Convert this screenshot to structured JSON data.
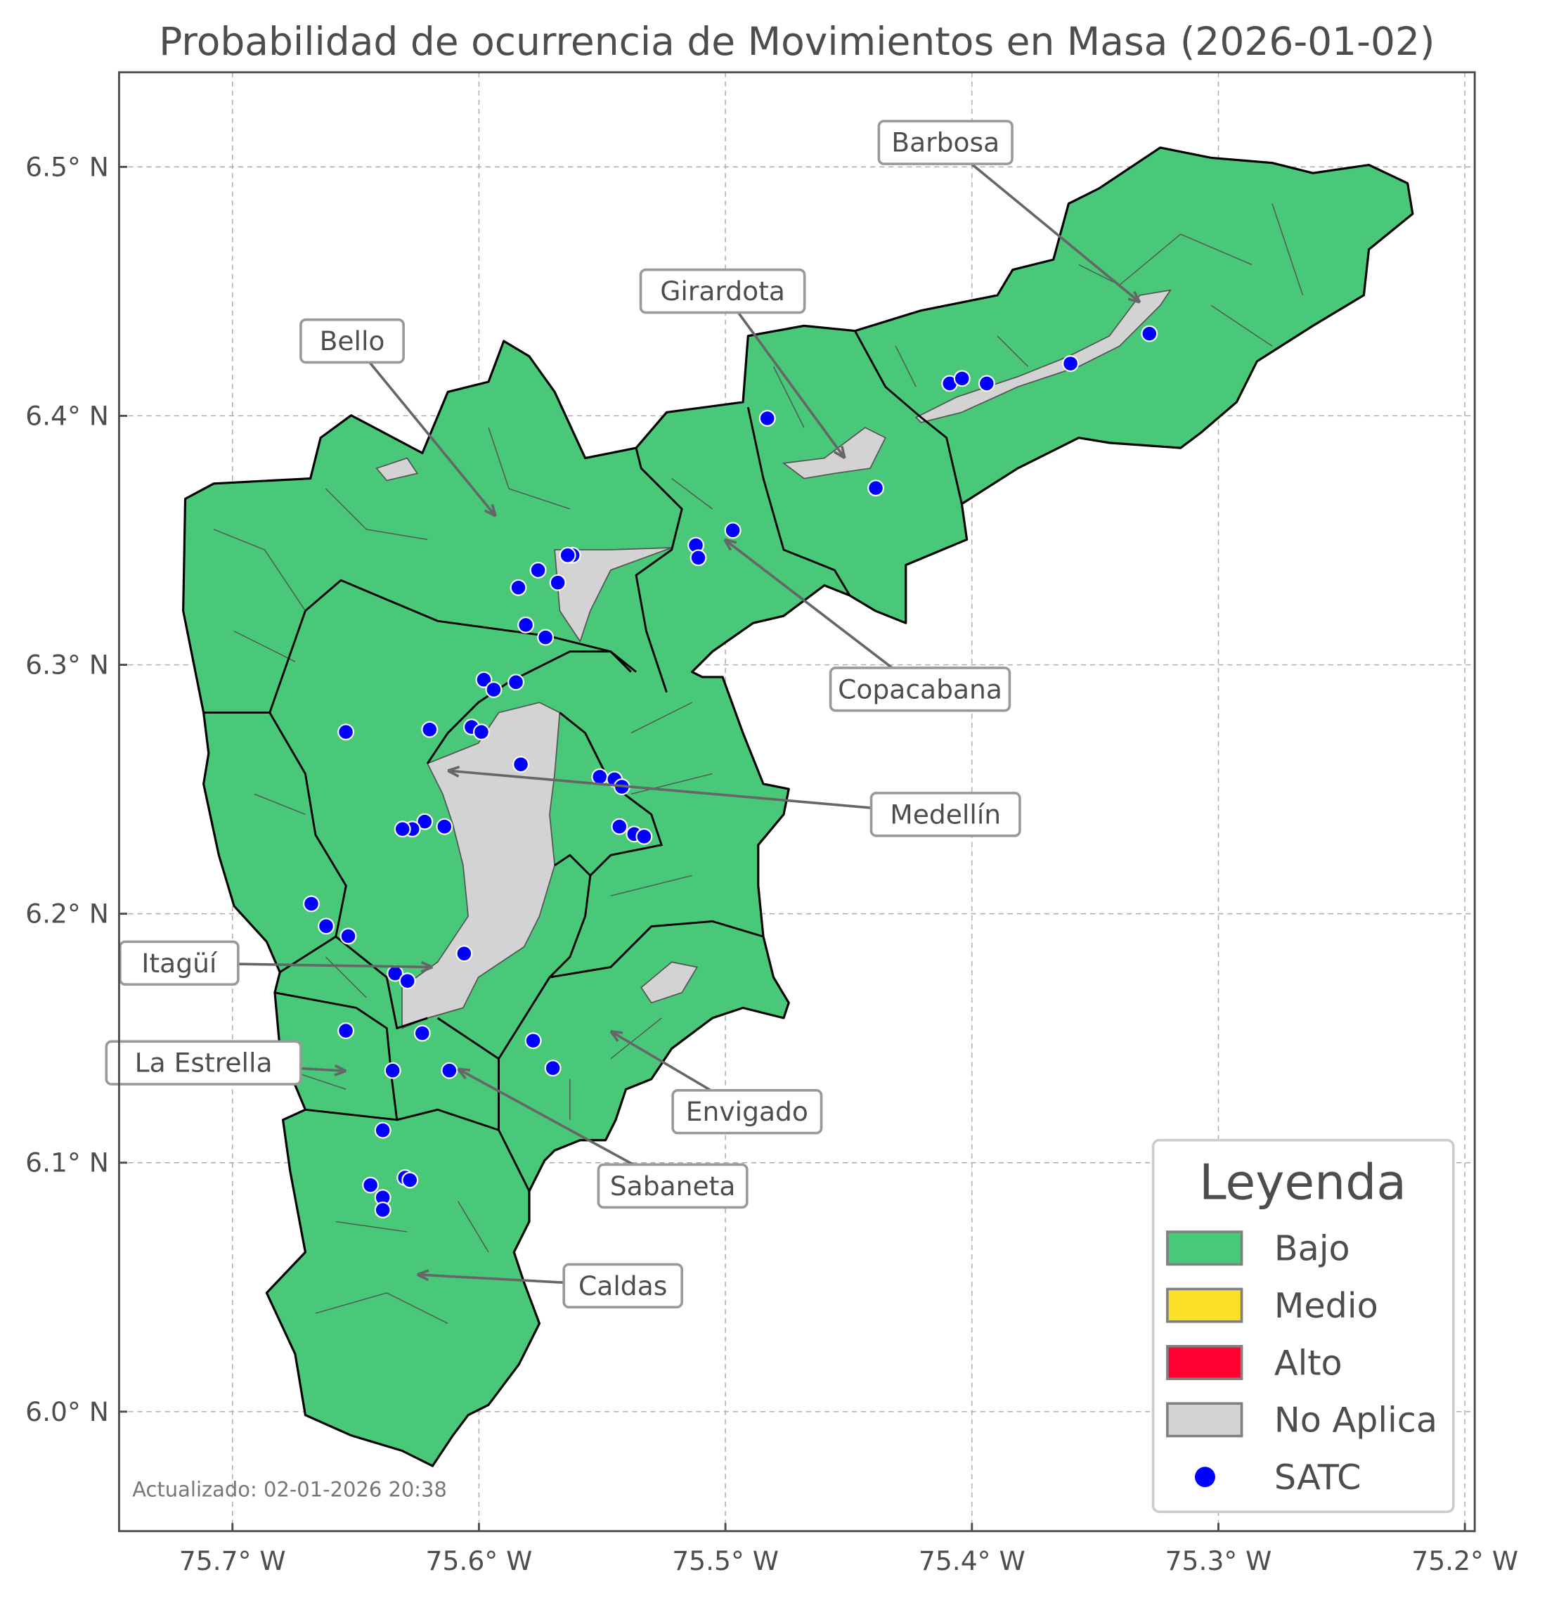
{
  "title": "Probabilidad de ocurrencia de Movimientos en Masa (2026-01-02)",
  "footer": "Actualizado: 02-01-2026 20:38",
  "map": {
    "xlim_lon_w": [
      75.746,
      75.196
    ],
    "ylim_lat_n": [
      5.952,
      6.538
    ],
    "grid": true,
    "x_ticks": [
      {
        "value": 75.7,
        "label": "75.7° W"
      },
      {
        "value": 75.6,
        "label": "75.6° W"
      },
      {
        "value": 75.5,
        "label": "75.5° W"
      },
      {
        "value": 75.4,
        "label": "75.4° W"
      },
      {
        "value": 75.3,
        "label": "75.3° W"
      },
      {
        "value": 75.2,
        "label": "75.2° W"
      }
    ],
    "y_ticks": [
      {
        "value": 6.5,
        "label": "6.5° N"
      },
      {
        "value": 6.4,
        "label": "6.4° N"
      },
      {
        "value": 6.3,
        "label": "6.3° N"
      },
      {
        "value": 6.2,
        "label": "6.2° N"
      },
      {
        "value": 6.1,
        "label": "6.1° N"
      },
      {
        "value": 6.0,
        "label": "6.0° N"
      }
    ],
    "municipalities": [
      "Barbosa",
      "Girardota",
      "Bello",
      "Copacabana",
      "Medellín",
      "Itagüí",
      "La Estrella",
      "Envigado",
      "Sabaneta",
      "Caldas"
    ],
    "all_municipalities_class": "Bajo",
    "satc_points": [
      [
        75.483,
        6.399
      ],
      [
        75.409,
        6.413
      ],
      [
        75.404,
        6.415
      ],
      [
        75.394,
        6.413
      ],
      [
        75.36,
        6.421
      ],
      [
        75.328,
        6.433
      ],
      [
        75.439,
        6.371
      ],
      [
        75.497,
        6.354
      ],
      [
        75.512,
        6.348
      ],
      [
        75.511,
        6.343
      ],
      [
        75.562,
        6.344
      ],
      [
        75.564,
        6.344
      ],
      [
        75.576,
        6.338
      ],
      [
        75.568,
        6.333
      ],
      [
        75.584,
        6.331
      ],
      [
        75.581,
        6.316
      ],
      [
        75.573,
        6.311
      ],
      [
        75.598,
        6.294
      ],
      [
        75.585,
        6.293
      ],
      [
        75.594,
        6.29
      ],
      [
        75.654,
        6.273
      ],
      [
        75.62,
        6.274
      ],
      [
        75.603,
        6.275
      ],
      [
        75.599,
        6.273
      ],
      [
        75.583,
        6.26
      ],
      [
        75.551,
        6.255
      ],
      [
        75.545,
        6.254
      ],
      [
        75.542,
        6.251
      ],
      [
        75.543,
        6.235
      ],
      [
        75.537,
        6.232
      ],
      [
        75.533,
        6.231
      ],
      [
        75.622,
        6.237
      ],
      [
        75.627,
        6.234
      ],
      [
        75.631,
        6.234
      ],
      [
        75.614,
        6.235
      ],
      [
        75.668,
        6.204
      ],
      [
        75.662,
        6.195
      ],
      [
        75.653,
        6.191
      ],
      [
        75.606,
        6.184
      ],
      [
        75.634,
        6.176
      ],
      [
        75.629,
        6.173
      ],
      [
        75.623,
        6.152
      ],
      [
        75.654,
        6.153
      ],
      [
        75.578,
        6.149
      ],
      [
        75.57,
        6.138
      ],
      [
        75.635,
        6.137
      ],
      [
        75.612,
        6.137
      ],
      [
        75.639,
        6.113
      ],
      [
        75.644,
        6.091
      ],
      [
        75.63,
        6.094
      ],
      [
        75.628,
        6.093
      ],
      [
        75.639,
        6.086
      ],
      [
        75.639,
        6.081
      ]
    ]
  },
  "legend": {
    "title": "Leyenda",
    "items": [
      {
        "label": "Bajo",
        "color": "#48c878",
        "kind": "patch"
      },
      {
        "label": "Medio",
        "color": "#fde02a",
        "kind": "patch"
      },
      {
        "label": "Alto",
        "color": "#ff0030",
        "kind": "patch"
      },
      {
        "label": "No Aplica",
        "color": "#d3d3d3",
        "kind": "patch"
      },
      {
        "label": "SATC",
        "color": "#0000ff",
        "kind": "point"
      }
    ]
  }
}
